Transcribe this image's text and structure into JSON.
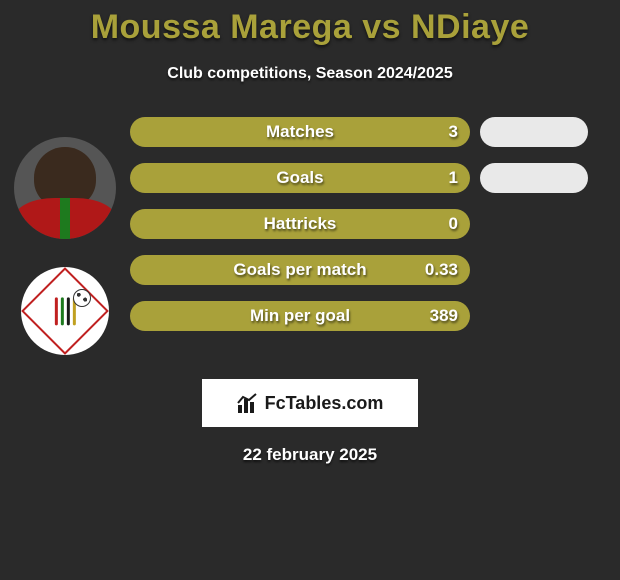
{
  "title": {
    "text": "Moussa Marega vs NDiaye",
    "color": "#a9a13a",
    "fontsize": 34
  },
  "subtitle": {
    "text": "Club competitions, Season 2024/2025",
    "color": "#ffffff",
    "fontsize": 16
  },
  "background_color": "#2a2a2a",
  "bar_style": {
    "left_color": "#a9a13a",
    "right_color": "#e9e9e9",
    "height": 30,
    "radius": 15,
    "label_fontsize": 17,
    "label_color": "#ffffff",
    "left_width": 340,
    "right_width": 108
  },
  "stats": [
    {
      "label": "Matches",
      "left_value": "3",
      "right_visible": true
    },
    {
      "label": "Goals",
      "left_value": "1",
      "right_visible": true
    },
    {
      "label": "Hattricks",
      "left_value": "0",
      "right_visible": false
    },
    {
      "label": "Goals per match",
      "left_value": "0.33",
      "right_visible": false
    },
    {
      "label": "Min per goal",
      "left_value": "389",
      "right_visible": false
    }
  ],
  "player_avatar": {
    "skin": "#3a2a1e",
    "jersey": "#b01818",
    "jersey_stripe": "#1e7a1e"
  },
  "club_badge": {
    "bg": "#ffffff",
    "border": "#c02020",
    "stripes": [
      "#c02020",
      "#1e7a1e",
      "#1a1a1a",
      "#c0a020"
    ]
  },
  "brand": {
    "text": "FcTables.com",
    "bg": "#ffffff",
    "color": "#1a1a1a",
    "icon_color": "#1a1a1a"
  },
  "date": {
    "text": "22 february 2025",
    "color": "#ffffff",
    "fontsize": 17
  }
}
